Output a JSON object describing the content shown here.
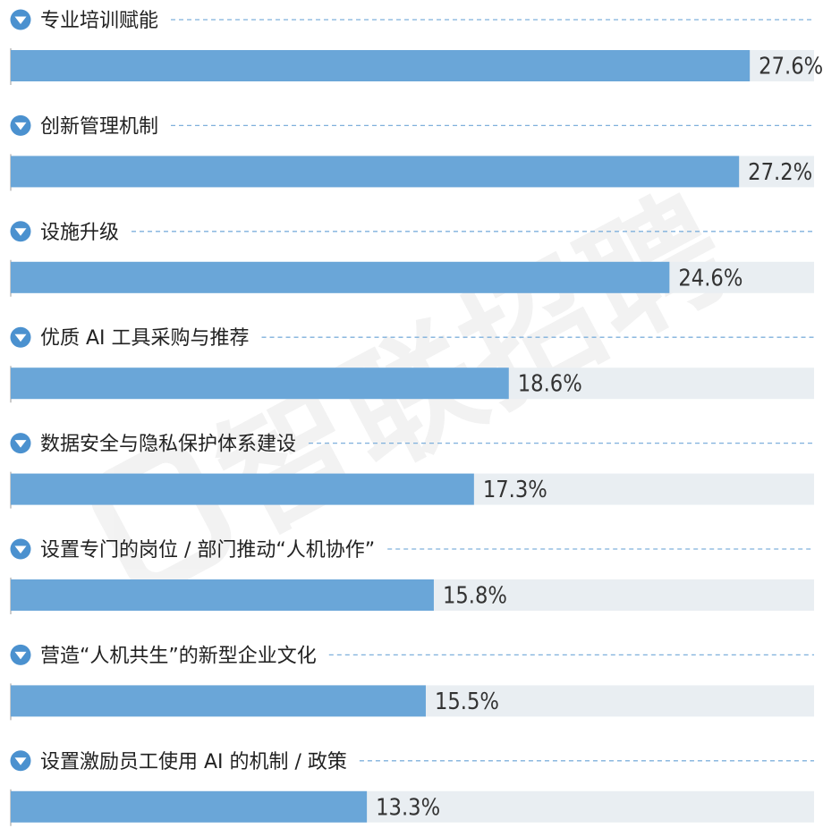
{
  "watermark": {
    "text": "智联招聘"
  },
  "colors": {
    "bar": "#6aa6d8",
    "track": "#e9eef2",
    "marker": "#4b91cf",
    "dash": "#7fb0dc",
    "label": "#222222",
    "value": "#333333"
  },
  "chart_data": {
    "type": "bar",
    "orientation": "horizontal",
    "categories": [
      "专业培训赋能",
      "创新管理机制",
      "设施升级",
      "优质 AI 工具采购与推荐",
      "数据安全与隐私保护体系建设",
      "设置专门的岗位 / 部门推动“人机协作”",
      "营造“人机共生”的新型企业文化",
      "设置激励员工使用 AI 的机制 / 政策"
    ],
    "values": [
      27.6,
      27.2,
      24.6,
      18.6,
      17.3,
      15.8,
      15.5,
      13.3
    ],
    "value_labels": [
      "27.6%",
      "27.2%",
      "24.6%",
      "18.6%",
      "17.3%",
      "15.8%",
      "15.5%",
      "13.3%"
    ],
    "xlim": [
      0,
      30
    ],
    "unit": "%"
  }
}
